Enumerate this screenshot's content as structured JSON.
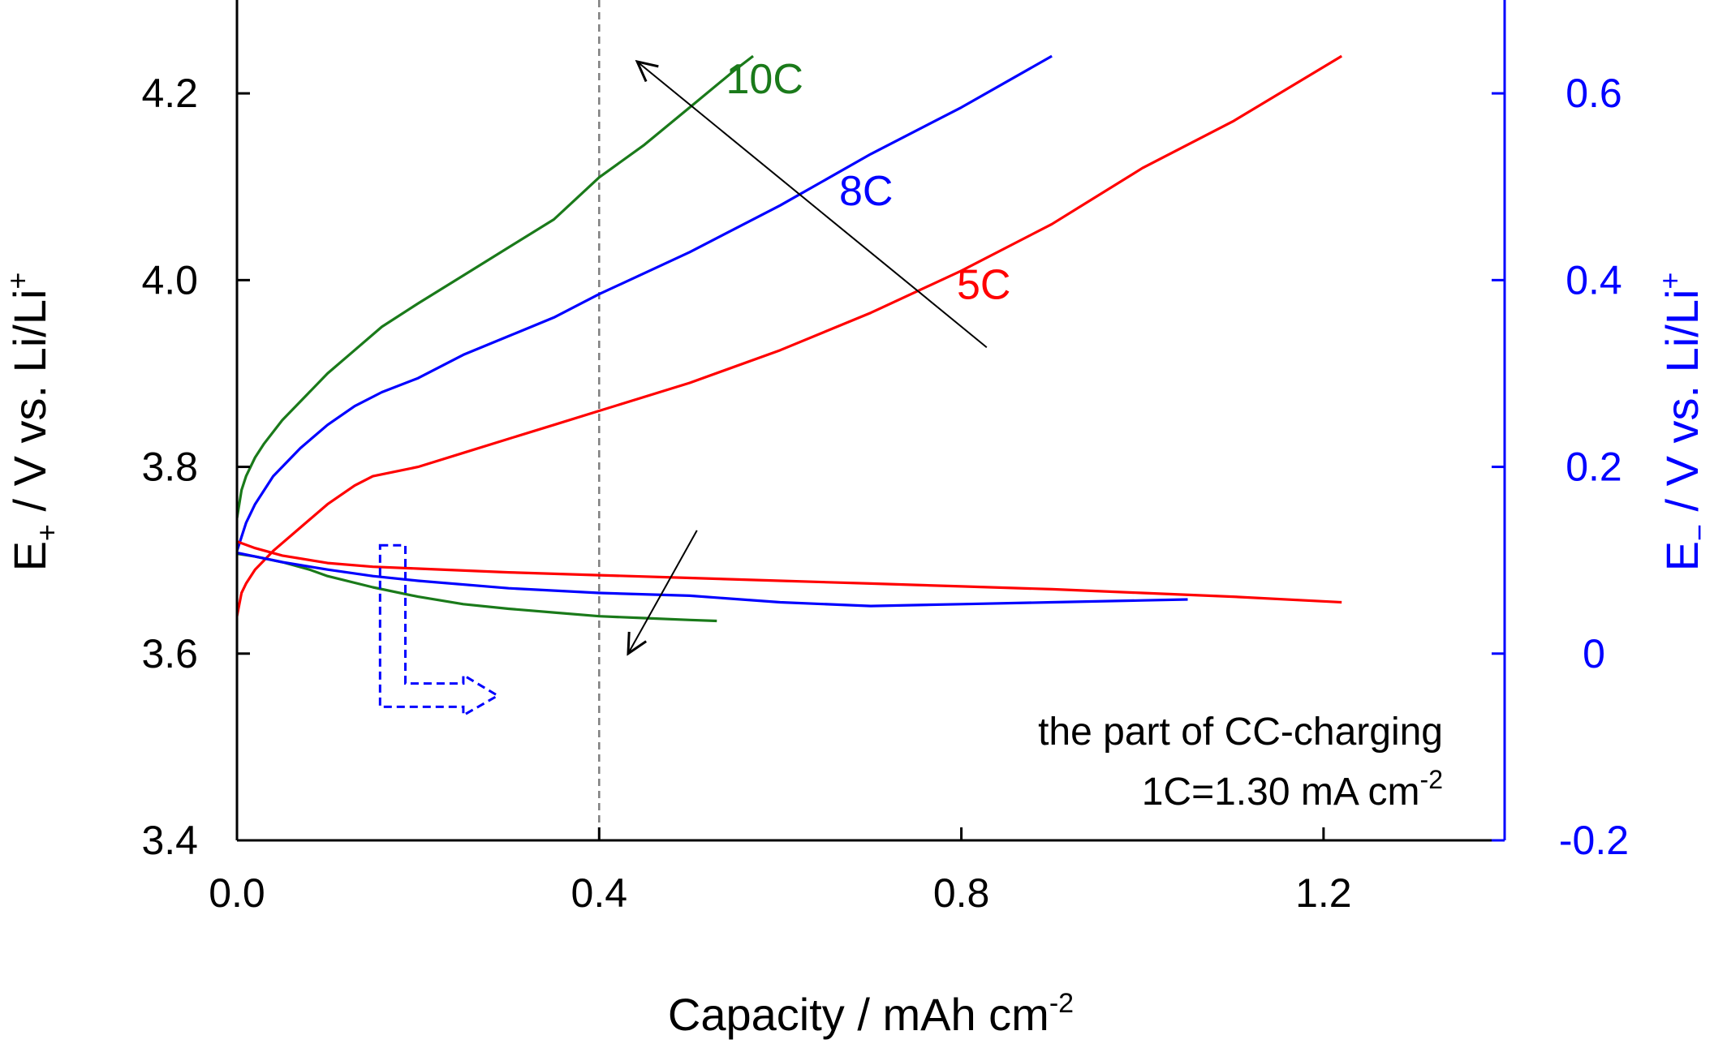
{
  "chart_data": {
    "type": "line",
    "xlabel": "Capacity / mAh cm",
    "xlabel_sup": "-2",
    "ylabel_left": {
      "main": "E",
      "sub": "+",
      "rest": " / V vs. Li/Li",
      "sup": "+"
    },
    "ylabel_right": {
      "main": "E",
      "sub": "−",
      "rest": " / V vs. Li/Li",
      "sup": "+"
    },
    "xlim": [
      0,
      1.4
    ],
    "ylim_left": [
      3.4,
      4.3
    ],
    "ylim_right": [
      -0.2,
      0.7
    ],
    "x_ticks": [
      0,
      0.4,
      0.8,
      1.2
    ],
    "x_tick_labels": [
      "0.0",
      "0.4",
      "0.8",
      "1.2"
    ],
    "y_left_ticks": [
      3.4,
      3.6,
      3.8,
      4.0,
      4.2
    ],
    "y_left_tick_labels": [
      "3.4",
      "3.6",
      "3.8",
      "4.0",
      "4.2"
    ],
    "y_right_ticks": [
      -0.2,
      0,
      0.2,
      0.4,
      0.6
    ],
    "y_right_tick_labels": [
      "-0.2",
      "0",
      "0.2",
      "0.4",
      "0.6"
    ],
    "grid": false,
    "vline_x": 0.4,
    "colors": {
      "left_axis": "#000000",
      "right_axis": "#0000ff",
      "vline": "#808080",
      "arrow": "#000000"
    },
    "series": [
      {
        "label": "10C",
        "color": "#1a7a1a",
        "axis": "left",
        "x": [
          0,
          0.005,
          0.01,
          0.02,
          0.03,
          0.05,
          0.07,
          0.1,
          0.13,
          0.16,
          0.2,
          0.25,
          0.3,
          0.35,
          0.4,
          0.45,
          0.5,
          0.55,
          0.57
        ],
        "y": [
          3.745,
          3.775,
          3.79,
          3.81,
          3.825,
          3.85,
          3.87,
          3.9,
          3.925,
          3.95,
          3.975,
          4.005,
          4.035,
          4.065,
          4.11,
          4.145,
          4.185,
          4.225,
          4.24
        ]
      },
      {
        "label": "8C",
        "color": "#0000ff",
        "axis": "left",
        "x": [
          0,
          0.01,
          0.02,
          0.04,
          0.07,
          0.1,
          0.13,
          0.16,
          0.2,
          0.25,
          0.3,
          0.35,
          0.4,
          0.5,
          0.6,
          0.7,
          0.8,
          0.9
        ],
        "y": [
          3.71,
          3.74,
          3.76,
          3.79,
          3.82,
          3.845,
          3.865,
          3.88,
          3.895,
          3.92,
          3.94,
          3.96,
          3.985,
          4.03,
          4.08,
          4.135,
          4.185,
          4.24
        ]
      },
      {
        "label": "5C",
        "color": "#ff0000",
        "axis": "left",
        "x": [
          0,
          0.005,
          0.01,
          0.02,
          0.04,
          0.07,
          0.1,
          0.13,
          0.15,
          0.2,
          0.25,
          0.3,
          0.35,
          0.4,
          0.5,
          0.6,
          0.7,
          0.8,
          0.9,
          1.0,
          1.1,
          1.22
        ],
        "y": [
          3.64,
          3.665,
          3.675,
          3.69,
          3.71,
          3.735,
          3.76,
          3.78,
          3.79,
          3.8,
          3.815,
          3.83,
          3.845,
          3.86,
          3.89,
          3.925,
          3.965,
          4.01,
          4.06,
          4.12,
          4.17,
          4.24
        ]
      },
      {
        "label": "10C",
        "color": "#1a7a1a",
        "axis": "right",
        "x": [
          0,
          0.02,
          0.05,
          0.08,
          0.1,
          0.15,
          0.2,
          0.25,
          0.3,
          0.35,
          0.4,
          0.45,
          0.5,
          0.53
        ],
        "y": [
          0.107,
          0.104,
          0.098,
          0.09,
          0.083,
          0.071,
          0.061,
          0.053,
          0.048,
          0.044,
          0.04,
          0.038,
          0.036,
          0.035
        ]
      },
      {
        "label": "8C",
        "color": "#0000ff",
        "axis": "right",
        "x": [
          0,
          0.02,
          0.05,
          0.1,
          0.15,
          0.2,
          0.3,
          0.4,
          0.5,
          0.6,
          0.7,
          0.8,
          0.9,
          1.0,
          1.05
        ],
        "y": [
          0.108,
          0.104,
          0.098,
          0.09,
          0.083,
          0.078,
          0.07,
          0.065,
          0.062,
          0.055,
          0.051,
          0.053,
          0.055,
          0.057,
          0.058
        ]
      },
      {
        "label": "5C",
        "color": "#ff0000",
        "axis": "right",
        "x": [
          0,
          0.02,
          0.05,
          0.1,
          0.15,
          0.2,
          0.3,
          0.4,
          0.5,
          0.6,
          0.7,
          0.8,
          0.9,
          1.0,
          1.1,
          1.22
        ],
        "y": [
          0.12,
          0.113,
          0.105,
          0.097,
          0.093,
          0.091,
          0.087,
          0.084,
          0.081,
          0.078,
          0.075,
          0.072,
          0.069,
          0.065,
          0.061,
          0.055
        ]
      }
    ],
    "curve_labels": [
      {
        "text": "10C",
        "color": "#1a7a1a",
        "x": 0.54,
        "y": 4.2
      },
      {
        "text": "8C",
        "color": "#0000ff",
        "x": 0.665,
        "y": 4.08
      },
      {
        "text": "5C",
        "color": "#ff0000",
        "x": 0.795,
        "y": 3.98
      }
    ],
    "arrows": [
      {
        "from": [
          0.828,
          3.928
        ],
        "to": [
          0.442,
          4.234
        ]
      },
      {
        "from": [
          0.508,
          3.732
        ],
        "to": [
          0.432,
          3.6
        ]
      }
    ],
    "right_axis_indicator": {
      "color": "#0000ff",
      "outline": [
        [
          0.158,
          3.716
        ],
        [
          0.186,
          3.716
        ],
        [
          0.186,
          3.568
        ],
        [
          0.25,
          3.568
        ],
        [
          0.25,
          3.577
        ],
        [
          0.288,
          3.555
        ],
        [
          0.25,
          3.534
        ],
        [
          0.25,
          3.543
        ],
        [
          0.158,
          3.543
        ]
      ]
    },
    "annotation": {
      "line1": "the part of CC-charging",
      "line2_main": "1C=1.30 mA cm",
      "line2_sup": "-2"
    }
  }
}
